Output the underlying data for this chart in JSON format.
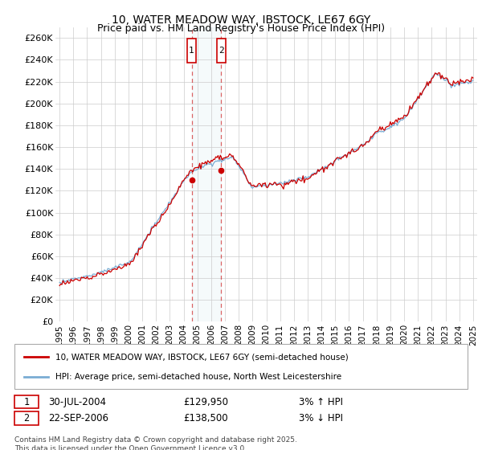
{
  "title": "10, WATER MEADOW WAY, IBSTOCK, LE67 6GY",
  "subtitle": "Price paid vs. HM Land Registry's House Price Index (HPI)",
  "ylim": [
    0,
    270000
  ],
  "yticks": [
    0,
    20000,
    40000,
    60000,
    80000,
    100000,
    120000,
    140000,
    160000,
    180000,
    200000,
    220000,
    240000,
    260000
  ],
  "ytick_labels": [
    "£0",
    "£20K",
    "£40K",
    "£60K",
    "£80K",
    "£100K",
    "£120K",
    "£140K",
    "£160K",
    "£180K",
    "£200K",
    "£220K",
    "£240K",
    "£260K"
  ],
  "xlim_start": 1994.7,
  "xlim_end": 2025.3,
  "xticks": [
    1995,
    1996,
    1997,
    1998,
    1999,
    2000,
    2001,
    2002,
    2003,
    2004,
    2005,
    2006,
    2007,
    2008,
    2009,
    2010,
    2011,
    2012,
    2013,
    2014,
    2015,
    2016,
    2017,
    2018,
    2019,
    2020,
    2021,
    2022,
    2023,
    2024,
    2025
  ],
  "line1_color": "#cc0000",
  "line2_color": "#7aadd4",
  "sale1_x": 2004.58,
  "sale1_y": 129950,
  "sale2_x": 2006.73,
  "sale2_y": 138500,
  "sale1_date": "30-JUL-2004",
  "sale1_price": "£129,950",
  "sale1_hpi": "3% ↑ HPI",
  "sale2_date": "22-SEP-2006",
  "sale2_price": "£138,500",
  "sale2_hpi": "3% ↓ HPI",
  "legend1": "10, WATER MEADOW WAY, IBSTOCK, LE67 6GY (semi-detached house)",
  "legend2": "HPI: Average price, semi-detached house, North West Leicestershire",
  "footnote": "Contains HM Land Registry data © Crown copyright and database right 2025.\nThis data is licensed under the Open Government Licence v3.0.",
  "bg_color": "#ffffff",
  "grid_color": "#cccccc"
}
